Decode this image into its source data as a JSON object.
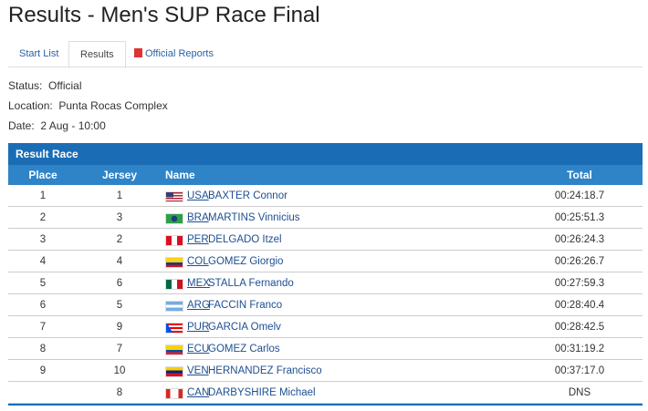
{
  "header": {
    "title": "Results - Men's SUP Race Final"
  },
  "tabs": [
    "Start List",
    "Results",
    "Official Reports"
  ],
  "info": [
    {
      "label": "Status:",
      "value": "Official"
    },
    {
      "label": "Location:",
      "value": "Punta Rocas Complex"
    },
    {
      "label": "Date:",
      "value": "2 Aug - 10:00"
    }
  ],
  "table": {
    "title": "Result Race",
    "columns": [
      "Place",
      "Jersey",
      "Name",
      "Total"
    ],
    "rows": [
      {
        "place": "1",
        "jersey": "1",
        "country": "USA",
        "name": "BAXTER Connor",
        "total": "00:24:18.7"
      },
      {
        "place": "2",
        "jersey": "3",
        "country": "BRA",
        "name": "MARTINS Vinnicius",
        "total": "00:25:51.3"
      },
      {
        "place": "3",
        "jersey": "2",
        "country": "PER",
        "name": "DELGADO Itzel",
        "total": "00:26:24.3"
      },
      {
        "place": "4",
        "jersey": "4",
        "country": "COL",
        "name": "GOMEZ Giorgio",
        "total": "00:26:26.7"
      },
      {
        "place": "5",
        "jersey": "6",
        "country": "MEX",
        "name": "STALLA Fernando",
        "total": "00:27:59.3"
      },
      {
        "place": "6",
        "jersey": "5",
        "country": "ARG",
        "name": "FACCIN Franco",
        "total": "00:28:40.4"
      },
      {
        "place": "7",
        "jersey": "9",
        "country": "PUR",
        "name": "GARCIA Omelv",
        "total": "00:28:42.5"
      },
      {
        "place": "8",
        "jersey": "7",
        "country": "ECU",
        "name": "GOMEZ Carlos",
        "total": "00:31:19.2"
      },
      {
        "place": "9",
        "jersey": "10",
        "country": "VEN",
        "name": "HERNANDEZ Francisco",
        "total": "00:37:17.0"
      },
      {
        "place": null,
        "jersey": "8",
        "country": "CAN",
        "name": "DARBYSHIRE Michael",
        "total": "DNS"
      }
    ]
  }
}
